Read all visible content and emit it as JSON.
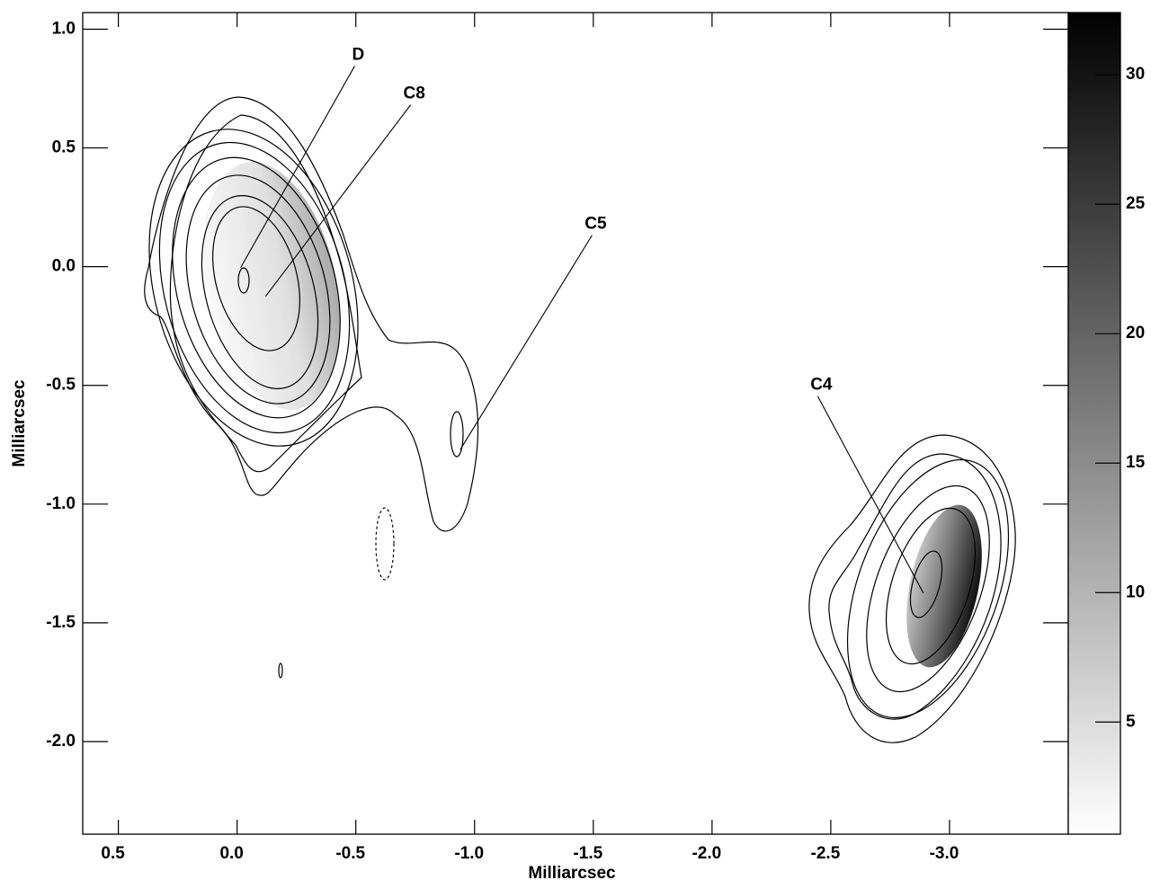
{
  "chart_data": {
    "type": "contour",
    "xlabel": "Milliarcsec",
    "ylabel": "Milliarcsec",
    "xlim": [
      0.65,
      -3.5
    ],
    "ylim": [
      -2.39,
      1.07
    ],
    "xticks": [
      0.5,
      {
        "value": 0,
        "label": "0.0"
      },
      -0.5,
      {
        "value": -1,
        "label": "-1.0"
      },
      -1.5,
      {
        "value": -2,
        "label": "-2.0"
      },
      -2.5,
      {
        "value": -3,
        "label": "-3.0"
      }
    ],
    "yticks": [
      {
        "value": 1,
        "label": "1.0"
      },
      0.5,
      {
        "value": 0,
        "label": "0.0"
      },
      -0.5,
      {
        "value": -1,
        "label": "-1.0"
      },
      -1.5,
      {
        "value": -2,
        "label": "-2.0"
      }
    ],
    "colorbar": {
      "lim": [
        0.67,
        32.4
      ],
      "ticks": [
        5,
        10,
        15,
        20,
        25,
        30
      ]
    },
    "annotations": [
      {
        "text": "D",
        "x": -0.51,
        "y": 0.89,
        "target_x": -0.015,
        "target_y": -0.004
      },
      {
        "text": "C8",
        "x": -0.746,
        "y": 0.727,
        "target_x": -0.12,
        "target_y": -0.125
      },
      {
        "text": "C5",
        "x": -1.51,
        "y": 0.178,
        "target_x": -0.94,
        "target_y": -0.77
      },
      {
        "text": "C4",
        "x": -2.46,
        "y": -0.5,
        "target_x": -2.89,
        "target_y": -1.375
      }
    ]
  }
}
